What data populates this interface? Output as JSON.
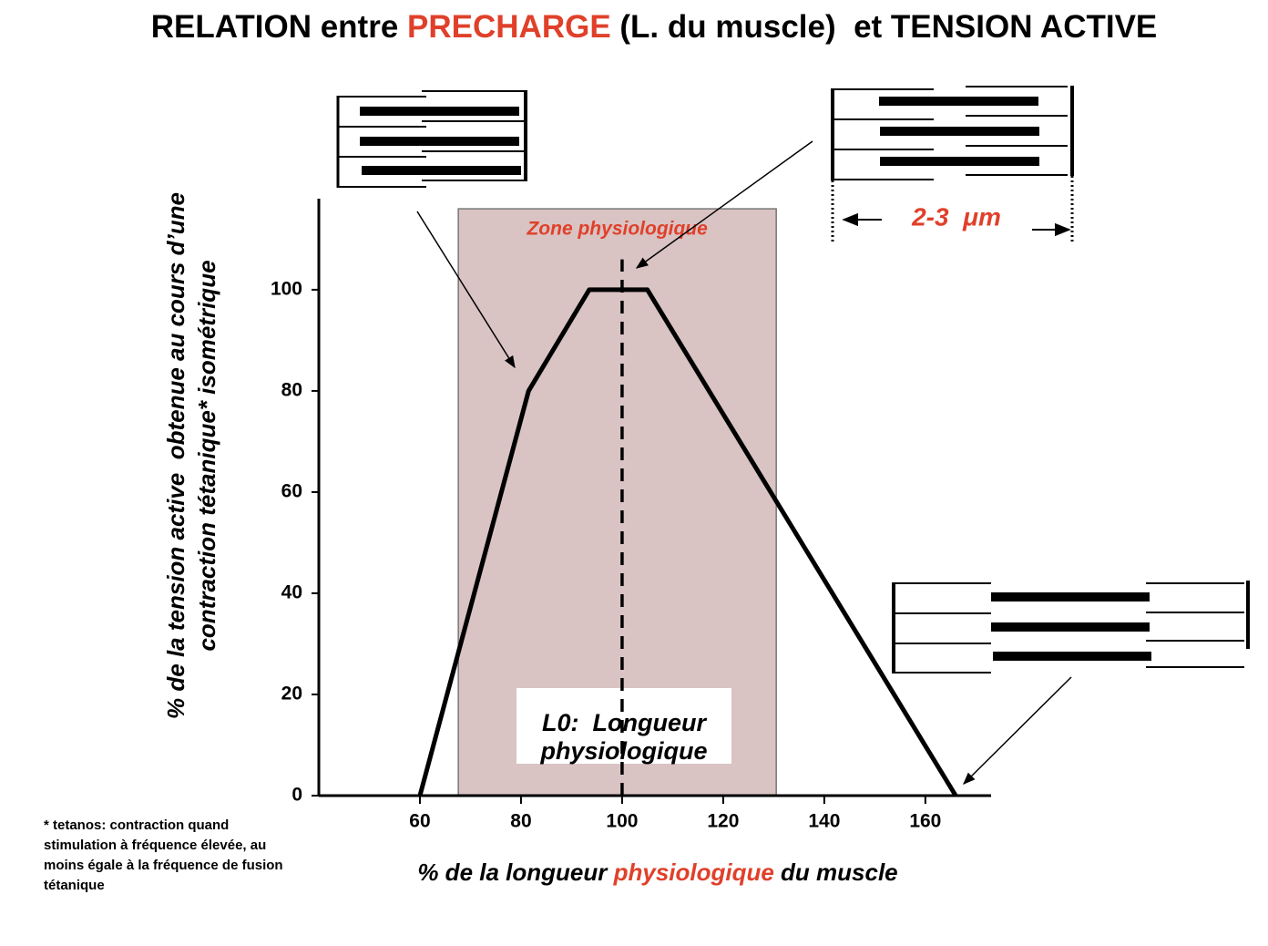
{
  "chart_data": {
    "type": "line",
    "title_parts": [
      {
        "text": "RELATION entre ",
        "color": "#000000"
      },
      {
        "text": "PRECHARGE",
        "color": "#e0402a"
      },
      {
        "text": " (L. du muscle)  et TENSION ACTIVE",
        "color": "#000000"
      }
    ],
    "x_label_parts": [
      {
        "text": "% de la longueur ",
        "color": "#000000"
      },
      {
        "text": "physiologique",
        "color": "#e0402a"
      },
      {
        "text": " du muscle",
        "color": "#000000"
      }
    ],
    "y_label_lines": [
      "% de la tension active  obtenue au cours d’une",
      "contraction tétanique* isométrique"
    ],
    "x": [
      60,
      81.5,
      93.5,
      105,
      166
    ],
    "series": [
      {
        "name": "Tension active",
        "color": "#000000",
        "values": [
          0,
          80,
          100,
          100,
          0
        ]
      }
    ],
    "xlim": [
      40,
      173
    ],
    "ylim": [
      0,
      118
    ],
    "xticks": [
      60,
      80,
      100,
      120,
      140,
      160
    ],
    "yticks": [
      0,
      20,
      40,
      60,
      80,
      100
    ],
    "zone": {
      "label": "Zone physiologique",
      "xlim": [
        67.6,
        130.5
      ],
      "top": 116,
      "color": "#d9c3c3",
      "label_color": "#e0402a"
    },
    "reference_line": {
      "x": 100,
      "top": 106
    },
    "l0_label": [
      "L0:  Longueur",
      "physiologique"
    ],
    "scale_label": "2-3  μm",
    "footnote": [
      "* tetanos: contraction quand",
      "stimulation à fréquence élevée, au",
      "moins égale à la fréquence de fusion",
      "tétanique"
    ]
  }
}
